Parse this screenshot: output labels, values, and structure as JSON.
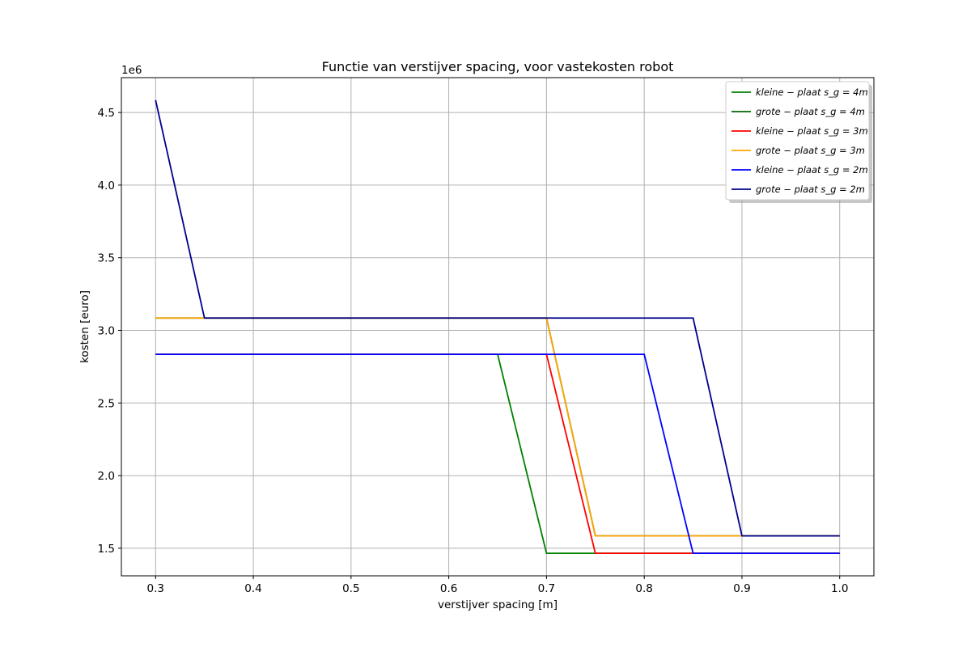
{
  "chart_data": {
    "type": "line",
    "title": "Functie van verstijver spacing, voor vastekosten robot",
    "xlabel": "verstijver spacing [m]",
    "ylabel": "kosten [euro]",
    "y_offset_label": "1e6",
    "xlim": [
      0.265,
      1.035
    ],
    "ylim": [
      1.31,
      4.74
    ],
    "xticks": [
      0.3,
      0.4,
      0.5,
      0.6,
      0.7,
      0.8,
      0.9,
      1.0
    ],
    "xtick_labels": [
      "0.3",
      "0.4",
      "0.5",
      "0.6",
      "0.7",
      "0.8",
      "0.9",
      "1.0"
    ],
    "yticks": [
      1.5,
      2.0,
      2.5,
      3.0,
      3.5,
      4.0,
      4.5
    ],
    "ytick_labels": [
      "1.5",
      "2.0",
      "2.5",
      "3.0",
      "3.5",
      "4.0",
      "4.5"
    ],
    "grid": true,
    "legend_position": "top-right",
    "series": [
      {
        "name": "kleine − plaat   s_g = 4m",
        "color": "#008000",
        "points": [
          [
            0.3,
            2.835
          ],
          [
            0.65,
            2.835
          ],
          [
            0.7,
            1.465
          ],
          [
            1.0,
            1.465
          ]
        ]
      },
      {
        "name": "grote − plaat   s_g = 4m",
        "color": "#006400",
        "points": [
          [
            0.3,
            3.085
          ],
          [
            0.7,
            3.085
          ],
          [
            0.75,
            1.585
          ],
          [
            1.0,
            1.585
          ]
        ]
      },
      {
        "name": "kleine − plaat   s_g = 3m",
        "color": "#ff0000",
        "points": [
          [
            0.3,
            2.835
          ],
          [
            0.7,
            2.835
          ],
          [
            0.75,
            1.465
          ],
          [
            1.0,
            1.465
          ]
        ]
      },
      {
        "name": "grote − plaat   s_g = 3m",
        "color": "#ffa500",
        "points": [
          [
            0.3,
            3.085
          ],
          [
            0.7,
            3.085
          ],
          [
            0.75,
            1.585
          ],
          [
            1.0,
            1.585
          ]
        ]
      },
      {
        "name": "kleine − plaat   s_g = 2m",
        "color": "#0000ff",
        "points": [
          [
            0.3,
            2.835
          ],
          [
            0.8,
            2.835
          ],
          [
            0.85,
            1.465
          ],
          [
            1.0,
            1.465
          ]
        ]
      },
      {
        "name": "grote − plaat   s_g = 2m",
        "color": "#00008b",
        "points": [
          [
            0.3,
            4.585
          ],
          [
            0.35,
            3.085
          ],
          [
            0.85,
            3.085
          ],
          [
            0.9,
            1.585
          ],
          [
            1.0,
            1.585
          ]
        ]
      }
    ]
  }
}
